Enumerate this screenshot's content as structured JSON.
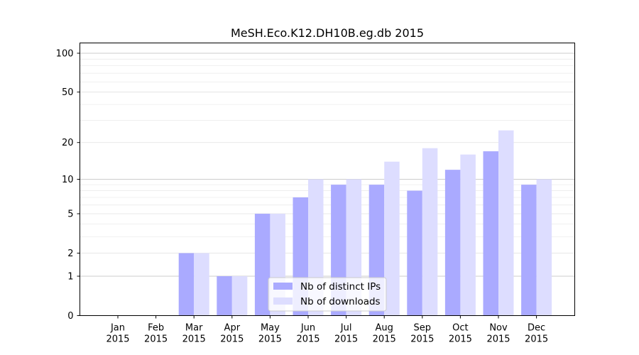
{
  "chart_data": {
    "type": "bar",
    "title": "MeSH.Eco.K12.DH10B.eg.db 2015",
    "xlabel": "",
    "ylabel": "",
    "yscale": "symlog",
    "ylim": [
      0,
      120
    ],
    "yticks": [
      0,
      1,
      2,
      5,
      10,
      20,
      50,
      100
    ],
    "ytick_labels": [
      "0",
      "1",
      "2",
      "5",
      "10",
      "20",
      "50",
      "100"
    ],
    "grid": "horizontal",
    "legend_position": "bottom-center",
    "categories": [
      [
        "Jan",
        "2015"
      ],
      [
        "Feb",
        "2015"
      ],
      [
        "Mar",
        "2015"
      ],
      [
        "Apr",
        "2015"
      ],
      [
        "May",
        "2015"
      ],
      [
        "Jun",
        "2015"
      ],
      [
        "Jul",
        "2015"
      ],
      [
        "Aug",
        "2015"
      ],
      [
        "Sep",
        "2015"
      ],
      [
        "Oct",
        "2015"
      ],
      [
        "Nov",
        "2015"
      ],
      [
        "Dec",
        "2015"
      ]
    ],
    "series": [
      {
        "name": "Nb of distinct IPs",
        "color": "#aaaaff",
        "values": [
          0,
          0,
          2,
          1,
          5,
          7,
          9,
          9,
          8,
          12,
          17,
          9
        ]
      },
      {
        "name": "Nb of downloads",
        "color": "#ddddff",
        "values": [
          0,
          0,
          2,
          1,
          5,
          10,
          10,
          14,
          18,
          16,
          25,
          10
        ]
      }
    ]
  }
}
